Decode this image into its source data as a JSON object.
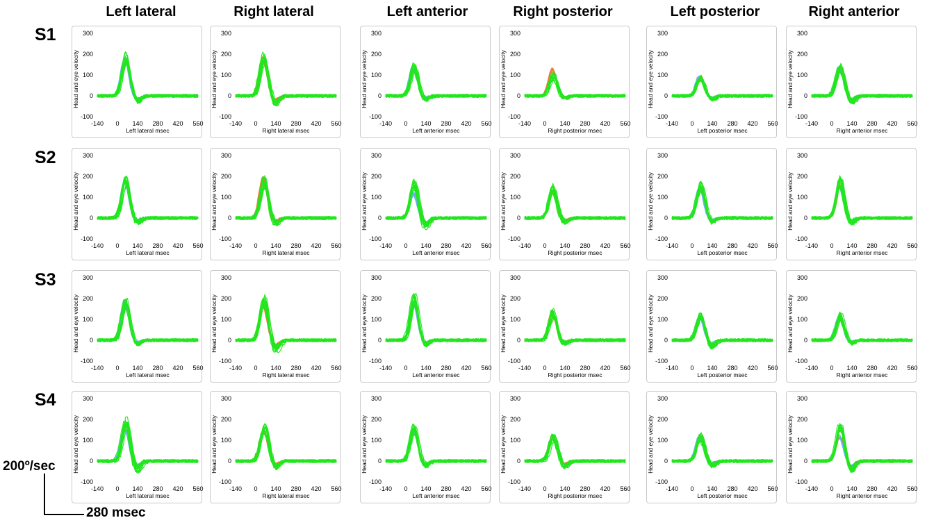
{
  "column_titles": [
    "Left lateral",
    "Right lateral",
    "Left anterior",
    "Right posterior",
    "Left posterior",
    "Right anterior"
  ],
  "row_labels": [
    "S1",
    "S2",
    "S3",
    "S4"
  ],
  "scale_bar": {
    "vertical": "200º/sec",
    "horizontal": "280 msec"
  },
  "colors": {
    "head": "#6ab0f0",
    "eye_pos": "#f07a3c",
    "eye_pos2": "#ff6a4a",
    "eye": "#22e61e"
  },
  "chart_data": {
    "type": "line",
    "ylabel": "Head and eye velocity",
    "xlabels": [
      "Left lateral msec",
      "Right lateral msec",
      "Left anterior msec",
      "Right posterior msec",
      "Left posterior msec",
      "Right anterior msec"
    ],
    "xticks": [
      -140,
      0,
      140,
      280,
      420,
      560
    ],
    "yticks": [
      -100,
      0,
      100,
      200,
      300
    ],
    "xlim": [
      -140,
      560
    ],
    "ylim": [
      -100,
      300
    ],
    "grid": false,
    "panels": [
      [
        {
          "head": 185,
          "eye": 205,
          "eye_min": -40
        },
        {
          "head": 180,
          "eye": 210,
          "eye_min": -50
        },
        {
          "head": 140,
          "eye": 150,
          "eye_min": -25
        },
        {
          "head": 125,
          "eye": 110,
          "eye_min": -20
        },
        {
          "head": 95,
          "eye": 100,
          "eye_min": -25
        },
        {
          "head": 135,
          "eye": 150,
          "eye_min": -40
        }
      ],
      [
        {
          "head": 185,
          "eye": 200,
          "eye_min": -30
        },
        {
          "head": 190,
          "eye": 200,
          "eye_min": -40
        },
        {
          "head": 120,
          "eye": 180,
          "eye_min": -60
        },
        {
          "head": 135,
          "eye": 160,
          "eye_min": -30
        },
        {
          "head": 150,
          "eye": 170,
          "eye_min": -25
        },
        {
          "head": 160,
          "eye": 200,
          "eye_min": -30
        }
      ],
      [
        {
          "head": 185,
          "eye": 210,
          "eye_min": -30
        },
        {
          "head": 170,
          "eye": 210,
          "eye_min": -60
        },
        {
          "head": 180,
          "eye": 220,
          "eye_min": -30
        },
        {
          "head": 135,
          "eye": 145,
          "eye_min": -25
        },
        {
          "head": 120,
          "eye": 130,
          "eye_min": -40
        },
        {
          "head": 120,
          "eye": 130,
          "eye_min": -20
        }
      ],
      [
        {
          "head": 160,
          "eye": 210,
          "eye_min": -60
        },
        {
          "head": 150,
          "eye": 180,
          "eye_min": -40
        },
        {
          "head": 140,
          "eye": 170,
          "eye_min": -30
        },
        {
          "head": 120,
          "eye": 130,
          "eye_min": -35
        },
        {
          "head": 120,
          "eye": 130,
          "eye_min": -30
        },
        {
          "head": 120,
          "eye": 180,
          "eye_min": -60
        }
      ]
    ]
  }
}
